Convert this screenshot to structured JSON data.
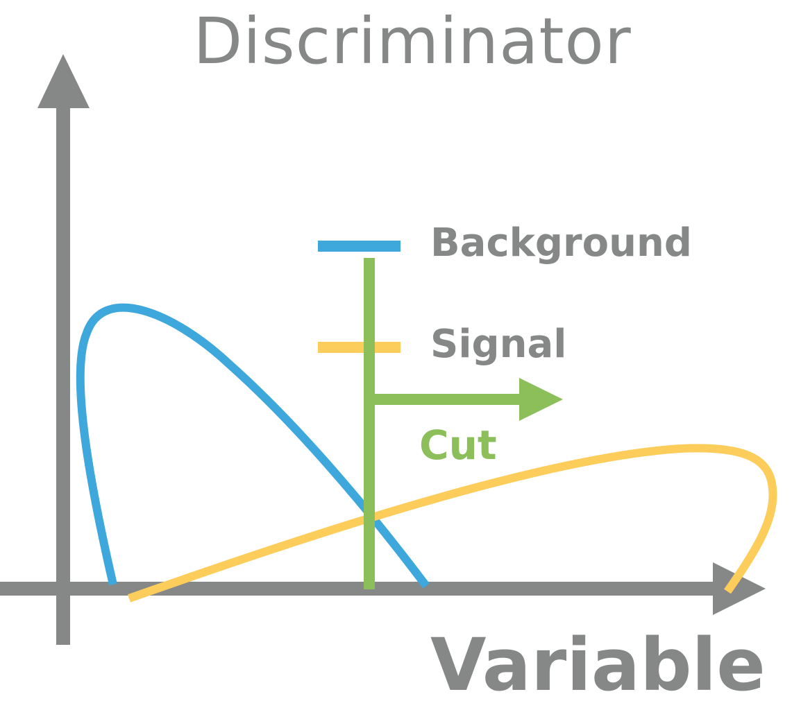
{
  "title": "Discriminator",
  "x_axis_label": "Variable",
  "legend": {
    "background_label": "Background",
    "signal_label": "Signal"
  },
  "cut": {
    "label": "Cut"
  },
  "colors": {
    "axis": "#868888",
    "background": "#3ea7dc",
    "signal": "#fdcd5c",
    "cut": "#8cbf5a"
  }
}
